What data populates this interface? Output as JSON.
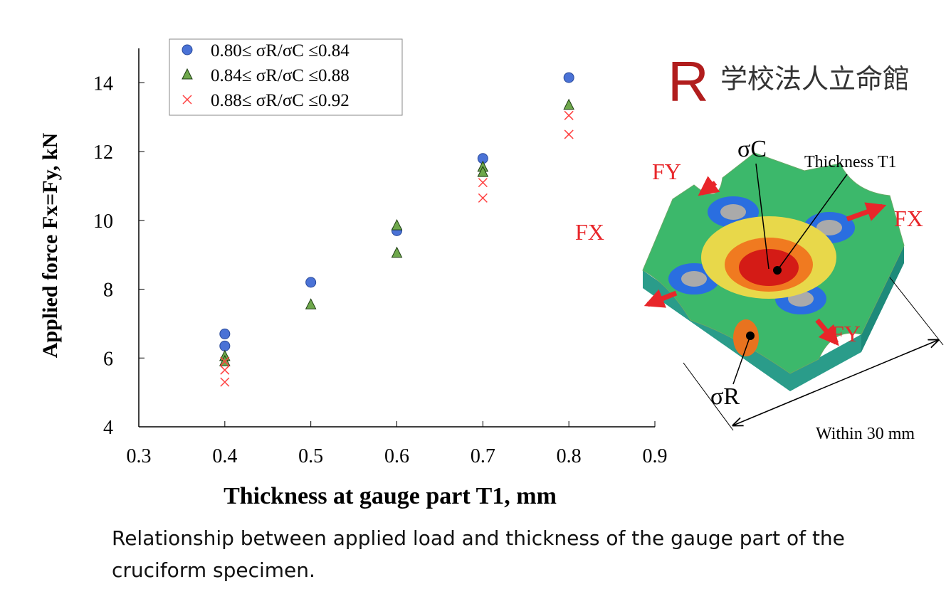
{
  "chart_data": {
    "type": "scatter",
    "xlabel": "Thickness at gauge part  T1, mm",
    "ylabel": "Applied force  Fx=Fy, kN",
    "xlim": [
      0.3,
      0.9
    ],
    "xticks": [
      0.3,
      0.4,
      0.5,
      0.6,
      0.7,
      0.8,
      0.9
    ],
    "ylim": [
      4,
      15
    ],
    "yticks": [
      4,
      6,
      8,
      10,
      12,
      14
    ],
    "grid": false,
    "legend": "upper left",
    "series": [
      {
        "name": "0.80≤ σR/σC ≤0.84",
        "marker": "circle",
        "color": "#4a72d6",
        "x": [
          0.4,
          0.4,
          0.5,
          0.6,
          0.7,
          0.8
        ],
        "values": [
          6.7,
          6.35,
          8.2,
          9.7,
          11.8,
          14.15
        ]
      },
      {
        "name": "0.84≤ σR/σC ≤0.88",
        "marker": "triangle",
        "color": "#6fa84c",
        "x": [
          0.4,
          0.4,
          0.5,
          0.6,
          0.6,
          0.7,
          0.7,
          0.8
        ],
        "values": [
          6.05,
          5.9,
          7.55,
          9.85,
          9.05,
          11.55,
          11.4,
          13.35
        ]
      },
      {
        "name": "0.88≤ σR/σC ≤0.92",
        "marker": "x",
        "color": "#ff4040",
        "x": [
          0.4,
          0.4,
          0.4,
          0.7,
          0.7,
          0.8,
          0.8
        ],
        "values": [
          5.9,
          5.65,
          5.3,
          11.1,
          10.65,
          13.05,
          12.5
        ]
      }
    ]
  },
  "logo": {
    "letter": "R",
    "text": "学校法人立命館"
  },
  "illustration": {
    "sigma_c": "σC",
    "thickness": "Thickness T1",
    "fy_top": "FY",
    "fx_right": "FX",
    "fx_left": "FX",
    "fy_bottom": "FY",
    "sigma_r": "σR",
    "width": "Within 30 mm"
  },
  "caption": "Relationship between applied load and thickness of the gauge part of the cruciform specimen."
}
